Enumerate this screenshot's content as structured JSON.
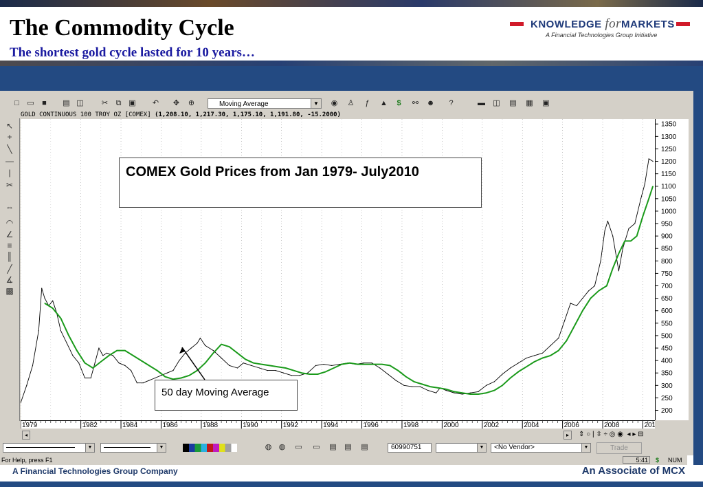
{
  "slide": {
    "title": "The Commodity Cycle",
    "subtitle": "The shortest gold cycle lasted for 10 years…",
    "logo_main_left": "KNOWLEDGE",
    "logo_main_italic": "for",
    "logo_main_right": "MARKETS",
    "logo_tagline": "A Financial Technologies Group Initiative",
    "footer_left": "A Financial Technologies Group Company",
    "footer_right": "An Associate of MCX"
  },
  "app": {
    "indicator_select": "Moving Average",
    "chart_symbol": "GOLD CONTINUOUS 100 TROY OZ [COMEX]",
    "chart_ohlc": "(1,208.10, 1,217.30, 1,175.10, 1,191.80, -15.2000)",
    "field_number": "60990751",
    "vendor_select": "<No Vendor>",
    "trade_button": "Trade",
    "status_help": "For Help, press F1",
    "status_time": "5:41",
    "status_dollar": "$",
    "status_num": "NUM"
  },
  "annotations": {
    "chart_caption": "COMEX Gold Prices from Jan 1979- July2010",
    "ma_caption": "50 day Moving Average"
  },
  "colors": {
    "price_line": "#000000",
    "ma_line": "#1a9a1a",
    "title_blue": "#1a1aa0",
    "brand_navy": "#234a82",
    "brand_red": "#d11a2a"
  },
  "chart_data": {
    "type": "line",
    "title": "COMEX Gold Prices from Jan 1979- July2010",
    "xlabel": "",
    "ylabel": "",
    "x_ticks": [
      "1979",
      "1982",
      "1984",
      "1986",
      "1988",
      "1990",
      "1992",
      "1994",
      "1996",
      "1998",
      "2000",
      "2002",
      "2004",
      "2006",
      "2008",
      "201"
    ],
    "y_ticks": [
      200,
      250,
      300,
      350,
      400,
      450,
      500,
      550,
      600,
      650,
      700,
      750,
      800,
      850,
      900,
      950,
      1000,
      1050,
      1100,
      1150,
      1200,
      1250,
      1300,
      1350
    ],
    "xlim": [
      1979.0,
      2010.6
    ],
    "ylim": [
      160,
      1370
    ],
    "grid": "vertical dotted",
    "series": [
      {
        "name": "",
        "style": "price",
        "x": [
          1979.0,
          1979.3,
          1979.6,
          1979.9,
          1980.05,
          1980.2,
          1980.4,
          1980.6,
          1980.8,
          1981.0,
          1981.3,
          1981.6,
          1981.9,
          1982.2,
          1982.5,
          1982.7,
          1982.9,
          1983.1,
          1983.3,
          1983.6,
          1983.9,
          1984.2,
          1984.5,
          1984.8,
          1985.1,
          1985.4,
          1985.7,
          1986.0,
          1986.3,
          1986.6,
          1986.9,
          1987.2,
          1987.5,
          1987.8,
          1987.95,
          1988.2,
          1988.6,
          1989.0,
          1989.4,
          1989.8,
          1990.1,
          1990.5,
          1990.9,
          1991.3,
          1991.7,
          1992.1,
          1992.5,
          1992.9,
          1993.3,
          1993.7,
          1994.1,
          1994.5,
          1994.9,
          1995.3,
          1995.7,
          1996.1,
          1996.5,
          1996.9,
          1997.3,
          1997.7,
          1998.1,
          1998.5,
          1998.9,
          1999.3,
          1999.7,
          1999.9,
          2000.2,
          2000.6,
          2001.0,
          2001.4,
          2001.8,
          2002.2,
          2002.6,
          2003.0,
          2003.4,
          2003.8,
          2004.2,
          2004.6,
          2005.0,
          2005.4,
          2005.8,
          2006.1,
          2006.4,
          2006.7,
          2007.0,
          2007.3,
          2007.6,
          2007.9,
          2008.1,
          2008.25,
          2008.5,
          2008.8,
          2009.0,
          2009.3,
          2009.6,
          2009.9,
          2010.1,
          2010.3,
          2010.5
        ],
        "y": [
          230,
          300,
          380,
          520,
          690,
          650,
          620,
          640,
          590,
          520,
          470,
          420,
          390,
          330,
          330,
          390,
          450,
          420,
          430,
          420,
          390,
          380,
          360,
          310,
          310,
          320,
          330,
          340,
          350,
          360,
          400,
          430,
          450,
          470,
          490,
          460,
          440,
          410,
          380,
          370,
          390,
          380,
          370,
          360,
          360,
          350,
          340,
          340,
          350,
          380,
          385,
          380,
          385,
          390,
          385,
          390,
          390,
          370,
          345,
          320,
          300,
          295,
          295,
          280,
          270,
          290,
          280,
          270,
          265,
          270,
          275,
          300,
          315,
          345,
          370,
          390,
          410,
          420,
          430,
          460,
          490,
          560,
          630,
          620,
          650,
          680,
          700,
          800,
          920,
          960,
          900,
          760,
          850,
          930,
          950,
          1050,
          1110,
          1210,
          1200
        ]
      },
      {
        "name": "",
        "style": "moving_average",
        "x": [
          1980.2,
          1980.6,
          1981.0,
          1981.4,
          1981.8,
          1982.2,
          1982.6,
          1983.0,
          1983.4,
          1983.8,
          1984.2,
          1984.6,
          1985.0,
          1985.4,
          1985.8,
          1986.2,
          1986.6,
          1987.0,
          1987.4,
          1987.8,
          1988.2,
          1988.6,
          1989.0,
          1989.4,
          1989.8,
          1990.2,
          1990.6,
          1991.0,
          1991.4,
          1991.8,
          1992.2,
          1992.6,
          1993.0,
          1993.4,
          1993.8,
          1994.2,
          1994.6,
          1995.0,
          1995.4,
          1995.8,
          1996.2,
          1996.6,
          1997.0,
          1997.4,
          1997.8,
          1998.2,
          1998.6,
          1999.0,
          1999.4,
          1999.8,
          2000.2,
          2000.6,
          2001.0,
          2001.4,
          2001.8,
          2002.2,
          2002.6,
          2003.0,
          2003.4,
          2003.8,
          2004.2,
          2004.6,
          2005.0,
          2005.4,
          2005.8,
          2006.2,
          2006.6,
          2007.0,
          2007.4,
          2007.8,
          2008.2,
          2008.5,
          2008.8,
          2009.1,
          2009.4,
          2009.7,
          2010.0,
          2010.3,
          2010.5
        ],
        "y": [
          630,
          610,
          570,
          500,
          440,
          390,
          370,
          395,
          420,
          440,
          440,
          420,
          400,
          380,
          360,
          335,
          325,
          330,
          340,
          360,
          390,
          430,
          465,
          455,
          430,
          405,
          390,
          385,
          380,
          375,
          370,
          360,
          350,
          345,
          345,
          355,
          370,
          385,
          390,
          385,
          385,
          385,
          385,
          380,
          360,
          335,
          315,
          305,
          295,
          290,
          285,
          275,
          270,
          265,
          265,
          270,
          280,
          300,
          330,
          355,
          375,
          395,
          410,
          420,
          440,
          480,
          540,
          600,
          650,
          680,
          700,
          770,
          830,
          880,
          880,
          900,
          980,
          1050,
          1100
        ]
      }
    ]
  }
}
